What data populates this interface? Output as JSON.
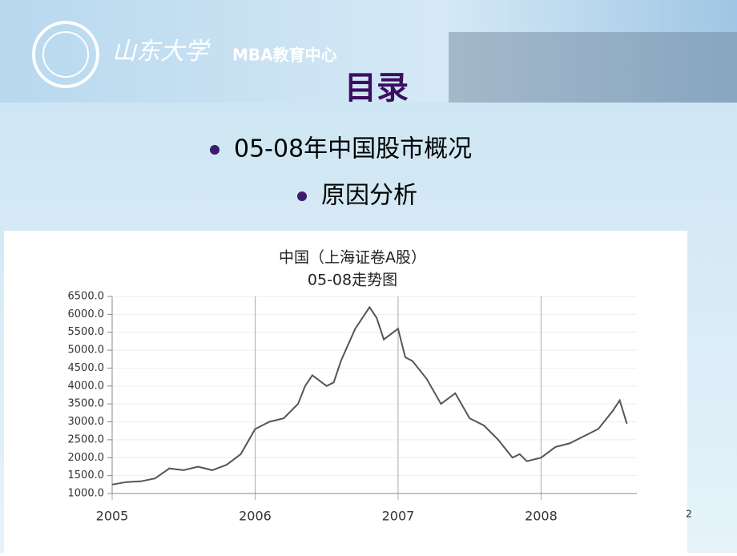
{
  "header": {
    "logo": "山东大学",
    "center": "MBA教育中心"
  },
  "slide": {
    "title": "目录",
    "bullets": [
      "05-08年中国股市概况",
      "原因分析"
    ],
    "page": "2"
  },
  "chart_data": {
    "type": "line",
    "title": "中国（上海证卷A股）",
    "subtitle": "05-08走势图",
    "color": "#555555",
    "x": [
      2005.0,
      2005.1,
      2005.2,
      2005.3,
      2005.4,
      2005.5,
      2005.6,
      2005.7,
      2005.8,
      2005.9,
      2006.0,
      2006.1,
      2006.2,
      2006.3,
      2006.35,
      2006.4,
      2006.5,
      2006.55,
      2006.6,
      2006.7,
      2006.8,
      2006.85,
      2006.9,
      2007.0,
      2007.05,
      2007.1,
      2007.2,
      2007.3,
      2007.4,
      2007.5,
      2007.6,
      2007.7,
      2007.8,
      2007.85,
      2007.9,
      2008.0,
      2008.1,
      2008.2,
      2008.3,
      2008.4,
      2008.5,
      2008.55,
      2008.6
    ],
    "values": [
      1250,
      1320,
      1340,
      1420,
      1700,
      1650,
      1750,
      1650,
      1800,
      2100,
      2800,
      3000,
      3100,
      3500,
      4000,
      4300,
      4000,
      4100,
      4700,
      5600,
      6200,
      5900,
      5300,
      5600,
      4800,
      4700,
      4200,
      3500,
      3800,
      3100,
      2900,
      2500,
      2000,
      2100,
      1900,
      2000,
      2300,
      2400,
      2600,
      2800,
      3300,
      3600,
      2950
    ],
    "xlim": [
      2005,
      2008.67
    ],
    "xticks": [
      2005,
      2006,
      2007,
      2008
    ],
    "ylim": [
      1000,
      6500
    ],
    "yticks": [
      {
        "value": 1000,
        "label": "1000.0"
      },
      {
        "value": 1500,
        "label": "1500.0"
      },
      {
        "value": 2000,
        "label": "2000.0"
      },
      {
        "value": 2500,
        "label": "2500.0"
      },
      {
        "value": 3000,
        "label": "3000.0"
      },
      {
        "value": 3500,
        "label": "3500.0"
      },
      {
        "value": 4000,
        "label": "4000.0"
      },
      {
        "value": 4500,
        "label": "4500.0"
      },
      {
        "value": 5000,
        "label": "5000.0"
      },
      {
        "value": 5500,
        "label": "5500.0"
      },
      {
        "value": 6000,
        "label": "6000.0"
      },
      {
        "value": 6500,
        "label": "6500.0"
      }
    ],
    "grid": true
  }
}
